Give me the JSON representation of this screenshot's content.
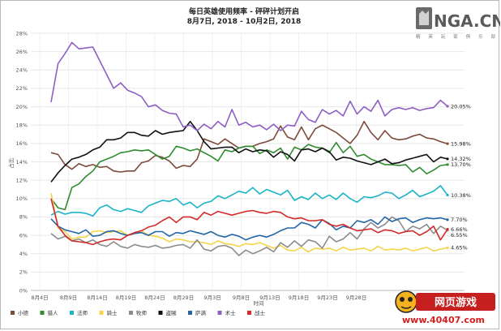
{
  "watermark": {
    "brand": "NGA.CN",
    "sub": "精 英 玩 家 俱 乐 部"
  },
  "site_badge": {
    "name": "网页游戏",
    "url": "www.40407.com"
  },
  "chart_data": {
    "type": "line",
    "title": "每日英雄使用频率 - 砰砰计划开启",
    "subtitle": "8月7日, 2018 - 10月2日, 2018",
    "xlabel": "时间",
    "ylabel": "占比",
    "ylim": [
      0,
      28
    ],
    "yticks": [
      0,
      2,
      4,
      6,
      8,
      10,
      12,
      14,
      16,
      18,
      20,
      22,
      24,
      26,
      28
    ],
    "ytick_suffix": "%",
    "xticks": [
      "8月4日",
      "8月9日",
      "8月14日",
      "8月19日",
      "8月24日",
      "8月29日",
      "9月3日",
      "9月8日",
      "9月13日",
      "9月18日",
      "9月23日",
      "9月28日"
    ],
    "x_start": "8月7日",
    "x_end": "10月2日",
    "grid": true,
    "legend_position": "bottom",
    "series": [
      {
        "name": "小德",
        "color": "#7d4a3c",
        "end_label": "15.98%",
        "values": [
          15.0,
          14.8,
          13.7,
          13.2,
          13.8,
          13.5,
          13.7,
          13.4,
          13.5,
          13.0,
          12.9,
          13.0,
          13.0,
          13.9,
          14.1,
          14.7,
          14.5,
          14.1,
          13.3,
          13.6,
          13.5,
          14.3,
          16.5,
          16.2,
          15.9,
          16.5,
          16.0,
          15.5,
          15.7,
          15.7,
          16.0,
          16.2,
          16.5,
          17.9,
          16.7,
          16.4,
          17.8,
          16.4,
          17.6,
          18.0,
          17.6,
          17.2,
          16.6,
          16.0,
          16.9,
          18.4,
          17.2,
          16.4,
          17.4,
          16.6,
          16.4,
          16.5,
          16.8,
          17.0,
          16.6,
          16.5,
          16.2,
          15.98
        ]
      },
      {
        "name": "猎人",
        "color": "#2e8b2e",
        "end_label": "13.70%",
        "values": [
          10.0,
          9.0,
          8.8,
          11.2,
          11.6,
          12.4,
          13.0,
          14.0,
          14.3,
          14.6,
          15.0,
          15.1,
          15.3,
          15.2,
          15.3,
          14.8,
          14.3,
          14.6,
          15.7,
          15.5,
          15.2,
          15.4,
          15.0,
          14.6,
          14.1,
          15.3,
          15.1,
          15.5,
          15.7,
          15.7,
          14.9,
          15.3,
          15.0,
          15.5,
          14.3,
          15.6,
          15.3,
          15.9,
          15.6,
          15.5,
          15.0,
          16.1,
          15.0,
          15.7,
          14.6,
          14.8,
          14.3,
          14.0,
          13.7,
          13.7,
          13.6,
          13.7,
          12.9,
          13.4,
          12.7,
          13.1,
          13.6,
          13.7
        ]
      },
      {
        "name": "法师",
        "color": "#1ab5c8",
        "end_label": "10.38%",
        "values": [
          8.2,
          8.6,
          8.3,
          8.5,
          8.5,
          8.4,
          8.1,
          9.0,
          9.3,
          8.8,
          8.6,
          8.9,
          8.7,
          8.5,
          9.2,
          9.5,
          9.8,
          9.7,
          10.0,
          9.3,
          9.6,
          9.0,
          9.5,
          9.7,
          10.3,
          10.0,
          10.4,
          10.8,
          10.6,
          11.2,
          10.5,
          11.0,
          10.7,
          10.4,
          10.9,
          9.8,
          10.2,
          9.9,
          10.6,
          10.0,
          10.4,
          9.9,
          10.6,
          10.0,
          9.6,
          10.2,
          10.1,
          10.3,
          10.7,
          10.6,
          10.0,
          10.4,
          10.9,
          10.2,
          10.5,
          10.8,
          11.4,
          10.38
        ]
      },
      {
        "name": "骑士",
        "color": "#f3d44a",
        "end_label": "4.65%",
        "values": [
          10.6,
          6.8,
          6.4,
          5.6,
          5.8,
          5.8,
          6.4,
          6.5,
          6.3,
          6.4,
          6.5,
          6.0,
          6.2,
          6.5,
          6.0,
          5.9,
          5.7,
          5.3,
          5.6,
          5.5,
          5.3,
          5.3,
          5.2,
          5.0,
          5.4,
          5.1,
          5.0,
          4.8,
          5.1,
          5.0,
          5.2,
          4.9,
          4.6,
          4.9,
          4.4,
          4.3,
          4.7,
          4.2,
          4.6,
          4.5,
          4.6,
          4.3,
          4.7,
          4.4,
          4.5,
          4.6,
          4.3,
          4.8,
          4.4,
          4.5,
          4.4,
          4.6,
          4.3,
          4.5,
          4.7,
          4.3,
          4.5,
          4.65
        ]
      },
      {
        "name": "牧师",
        "color": "#8c8c8c",
        "end_label": "6.55%",
        "values": [
          6.2,
          5.6,
          5.9,
          5.4,
          5.6,
          5.2,
          5.5,
          5.0,
          4.8,
          5.3,
          4.8,
          4.6,
          5.0,
          4.8,
          4.7,
          4.9,
          4.6,
          4.7,
          4.9,
          5.0,
          4.6,
          5.5,
          4.5,
          4.3,
          4.8,
          4.9,
          4.6,
          3.8,
          4.4,
          4.0,
          4.3,
          4.7,
          4.2,
          5.2,
          4.7,
          5.4,
          4.8,
          5.5,
          5.3,
          4.6,
          5.9,
          5.3,
          5.6,
          6.3,
          5.6,
          6.7,
          7.4,
          6.8,
          7.2,
          8.0,
          7.6,
          6.4,
          7.0,
          6.7,
          7.2,
          6.2,
          7.0,
          6.55
        ]
      },
      {
        "name": "盗贼",
        "color": "#111111",
        "end_label": "14.32%",
        "values": [
          11.8,
          12.8,
          13.6,
          14.3,
          14.5,
          14.8,
          15.3,
          15.6,
          16.4,
          16.4,
          16.6,
          17.2,
          17.2,
          16.9,
          16.8,
          17.4,
          17.0,
          17.2,
          17.3,
          17.4,
          18.4,
          17.4,
          16.2,
          15.4,
          15.5,
          15.6,
          15.6,
          15.0,
          15.4,
          15.1,
          15.3,
          15.2,
          14.5,
          15.1,
          14.8,
          14.1,
          15.3,
          15.4,
          15.1,
          15.5,
          15.1,
          14.2,
          14.5,
          14.4,
          14.1,
          13.9,
          13.7,
          14.0,
          14.3,
          13.8,
          13.9,
          14.2,
          14.4,
          14.6,
          14.8,
          14.0,
          14.5,
          14.32
        ]
      },
      {
        "name": "萨满",
        "color": "#2266a8",
        "end_label": "7.70%",
        "values": [
          7.8,
          7.0,
          6.6,
          6.4,
          6.2,
          6.6,
          5.9,
          6.0,
          6.4,
          6.5,
          6.2,
          6.0,
          6.2,
          6.3,
          6.0,
          6.4,
          6.4,
          5.9,
          6.3,
          6.2,
          6.5,
          6.3,
          6.1,
          6.4,
          6.0,
          5.8,
          6.1,
          5.9,
          5.5,
          5.8,
          6.0,
          5.8,
          6.1,
          6.5,
          6.8,
          6.8,
          7.4,
          7.2,
          6.8,
          7.7,
          7.3,
          6.6,
          7.0,
          6.8,
          7.6,
          7.4,
          7.7,
          7.2,
          8.0,
          7.5,
          7.8,
          7.9,
          7.4,
          7.7,
          7.9,
          7.8,
          7.9,
          7.7
        ]
      },
      {
        "name": "术士",
        "color": "#8e5ec4",
        "end_label": "20.05%",
        "values": [
          20.5,
          24.7,
          25.8,
          27.0,
          26.3,
          26.4,
          26.5,
          25.0,
          23.5,
          22.0,
          22.6,
          21.8,
          21.5,
          21.1,
          20.0,
          20.2,
          19.6,
          19.3,
          19.2,
          17.8,
          18.0,
          17.4,
          18.1,
          17.6,
          18.4,
          17.8,
          19.7,
          18.0,
          18.3,
          17.8,
          18.0,
          17.5,
          18.1,
          17.4,
          18.0,
          17.9,
          19.5,
          18.6,
          18.3,
          19.7,
          19.2,
          19.6,
          19.0,
          20.6,
          19.2,
          20.0,
          19.5,
          20.7,
          19.0,
          19.7,
          19.9,
          19.7,
          19.9,
          19.6,
          19.8,
          19.9,
          20.7,
          20.05
        ]
      },
      {
        "name": "战士",
        "color": "#d42a2a",
        "end_label": "6.66%",
        "values": [
          10.0,
          7.0,
          6.0,
          5.4,
          5.3,
          5.2,
          5.0,
          5.3,
          5.5,
          5.6,
          5.5,
          6.0,
          6.3,
          6.5,
          6.9,
          7.1,
          7.6,
          8.0,
          7.4,
          8.0,
          8.0,
          7.7,
          8.5,
          8.2,
          8.6,
          8.4,
          8.2,
          8.4,
          8.6,
          8.7,
          8.5,
          8.4,
          8.6,
          8.5,
          8.0,
          7.8,
          7.9,
          7.6,
          7.6,
          7.7,
          7.2,
          7.0,
          7.2,
          6.8,
          6.5,
          6.6,
          6.7,
          6.3,
          6.6,
          6.5,
          6.2,
          6.4,
          6.5,
          6.0,
          6.4,
          7.0,
          5.5,
          6.66
        ]
      }
    ]
  }
}
